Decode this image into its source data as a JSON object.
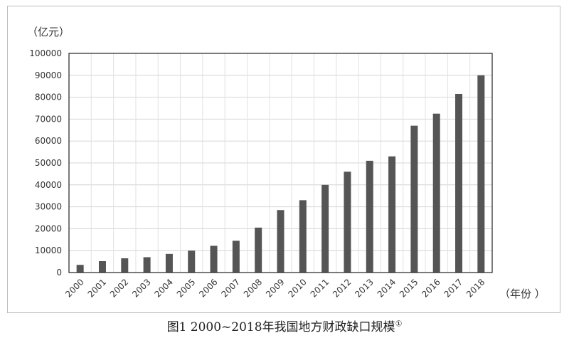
{
  "chart_data": {
    "type": "bar",
    "title": "",
    "ylabel": "（亿元）",
    "xlabel": "（年份 ）",
    "categories": [
      "2000",
      "2001",
      "2002",
      "2003",
      "2004",
      "2005",
      "2006",
      "2007",
      "2008",
      "2009",
      "2010",
      "2011",
      "2012",
      "2013",
      "2014",
      "2015",
      "2016",
      "2017",
      "2018"
    ],
    "values": [
      3500,
      5200,
      6500,
      7000,
      8500,
      10000,
      12200,
      14500,
      20500,
      28500,
      33000,
      40000,
      46000,
      51000,
      53000,
      67000,
      72500,
      81500,
      90000
    ],
    "ylim": [
      0,
      100000
    ],
    "yticks": [
      "0",
      "10000",
      "20000",
      "30000",
      "40000",
      "50000",
      "60000",
      "70000",
      "80000",
      "90000",
      "100000"
    ],
    "grid": true,
    "bar_color": "#555555"
  },
  "caption": {
    "text": "图1 2000~2018年我国地方财政缺口规模",
    "footnote_mark": "①"
  }
}
